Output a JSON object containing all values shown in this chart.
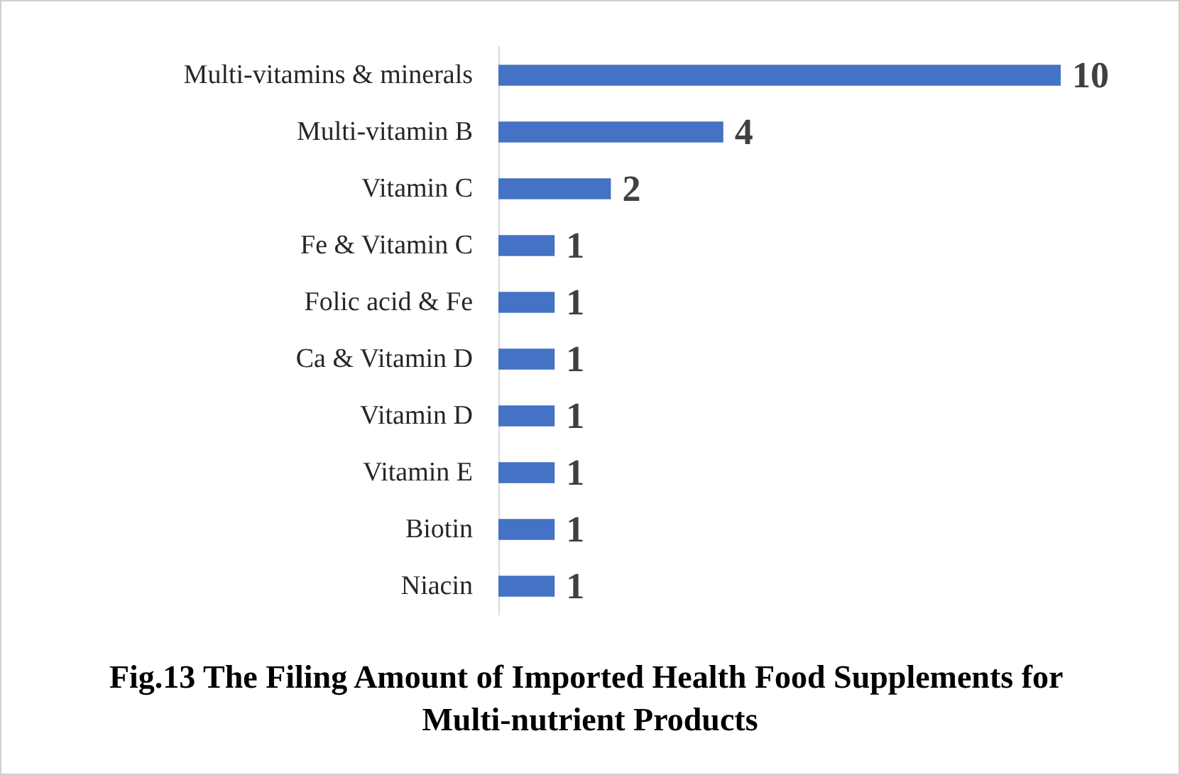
{
  "chart_data": {
    "type": "bar",
    "orientation": "horizontal",
    "title": "Fig.13 The Filing Amount of Imported Health Food Supplements for Multi-nutrient Products",
    "categories": [
      "Multi-vitamins & minerals",
      "Multi-vitamin B",
      "Vitamin C",
      "Fe & Vitamin C",
      "Folic acid & Fe",
      "Ca & Vitamin D",
      "Vitamin D",
      "Vitamin E",
      "Biotin",
      "Niacin"
    ],
    "values": [
      10,
      4,
      2,
      1,
      1,
      1,
      1,
      1,
      1,
      1
    ],
    "color": "#4472c4",
    "data_labels": true
  }
}
